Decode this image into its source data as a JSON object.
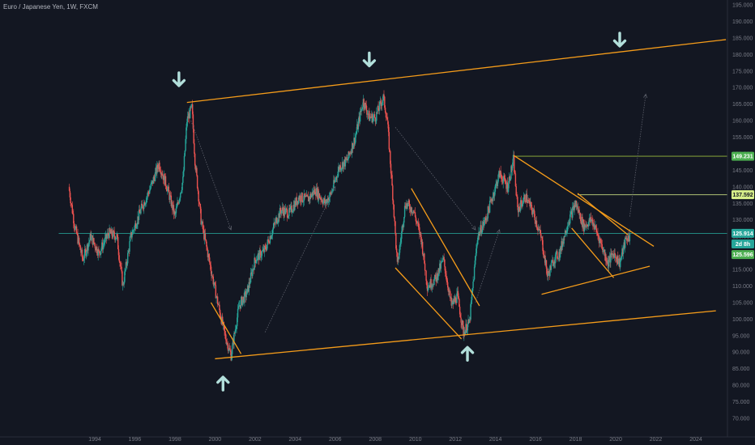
{
  "chart_data": {
    "type": "candlestick",
    "title": "Euro / Japanese Yen, 1W, FXCM",
    "x_ticks": [
      "1994",
      "1996",
      "1998",
      "2000",
      "2002",
      "2004",
      "2006",
      "2008",
      "2010",
      "2012",
      "2014",
      "2016",
      "2018",
      "2020",
      "2022",
      "2024"
    ],
    "y_ticks": [
      "195.000",
      "190.000",
      "185.000",
      "180.000",
      "175.000",
      "170.000",
      "165.000",
      "160.000",
      "155.000",
      "150.000",
      "145.000",
      "140.000",
      "135.000",
      "130.000",
      "125.000",
      "120.000",
      "115.000",
      "110.000",
      "105.000",
      "100.000",
      "95.000",
      "90.000",
      "85.000",
      "80.000",
      "75.000",
      "70.000"
    ],
    "ylim": [
      68,
      197
    ],
    "xlim": [
      1992.2,
      2026.5
    ],
    "price_path": [
      [
        1992.7,
        140
      ],
      [
        1993.0,
        128
      ],
      [
        1993.4,
        118
      ],
      [
        1993.8,
        125
      ],
      [
        1994.2,
        120
      ],
      [
        1994.7,
        126
      ],
      [
        1995.1,
        125
      ],
      [
        1995.4,
        110
      ],
      [
        1995.8,
        125
      ],
      [
        1996.3,
        133
      ],
      [
        1996.8,
        140
      ],
      [
        1997.2,
        147
      ],
      [
        1997.6,
        140
      ],
      [
        1998.0,
        131
      ],
      [
        1998.4,
        142
      ],
      [
        1998.6,
        160
      ],
      [
        1998.85,
        164
      ],
      [
        1999.0,
        148
      ],
      [
        1999.3,
        130
      ],
      [
        1999.7,
        118
      ],
      [
        2000.1,
        106
      ],
      [
        2000.5,
        95
      ],
      [
        2000.8,
        89
      ],
      [
        2001.2,
        104
      ],
      [
        2001.6,
        108
      ],
      [
        2002.0,
        118
      ],
      [
        2002.5,
        121
      ],
      [
        2003.0,
        129
      ],
      [
        2003.3,
        133
      ],
      [
        2003.7,
        132
      ],
      [
        2004.2,
        137
      ],
      [
        2004.6,
        136
      ],
      [
        2005.0,
        139
      ],
      [
        2005.5,
        135
      ],
      [
        2005.8,
        138
      ],
      [
        2006.2,
        146
      ],
      [
        2006.6,
        148
      ],
      [
        2007.0,
        155
      ],
      [
        2007.4,
        166
      ],
      [
        2007.7,
        161
      ],
      [
        2008.0,
        161
      ],
      [
        2008.4,
        167
      ],
      [
        2008.6,
        160
      ],
      [
        2008.9,
        135
      ],
      [
        2009.1,
        116
      ],
      [
        2009.5,
        135
      ],
      [
        2009.9,
        133
      ],
      [
        2010.3,
        124
      ],
      [
        2010.6,
        110
      ],
      [
        2011.0,
        112
      ],
      [
        2011.4,
        118
      ],
      [
        2011.8,
        104
      ],
      [
        2012.1,
        107
      ],
      [
        2012.4,
        96
      ],
      [
        2012.7,
        99
      ],
      [
        2013.1,
        125
      ],
      [
        2013.5,
        130
      ],
      [
        2013.9,
        138
      ],
      [
        2014.2,
        144
      ],
      [
        2014.6,
        140
      ],
      [
        2014.9,
        148
      ],
      [
        2015.1,
        133
      ],
      [
        2015.5,
        137
      ],
      [
        2015.9,
        132
      ],
      [
        2016.3,
        124
      ],
      [
        2016.6,
        113
      ],
      [
        2016.9,
        118
      ],
      [
        2017.2,
        120
      ],
      [
        2017.6,
        129
      ],
      [
        2018.0,
        135
      ],
      [
        2018.4,
        128
      ],
      [
        2018.8,
        130
      ],
      [
        2019.2,
        124
      ],
      [
        2019.6,
        117
      ],
      [
        2019.9,
        120
      ],
      [
        2020.2,
        117
      ],
      [
        2020.5,
        124
      ],
      [
        2020.7,
        125
      ]
    ],
    "trendlines": [
      {
        "from": [
          1998.6,
          165.5
        ],
        "to": [
          2025.5,
          184.5
        ],
        "color": "#f59c1a"
      },
      {
        "from": [
          2000.0,
          88
        ],
        "to": [
          2025.0,
          102.5
        ],
        "color": "#f59c1a"
      },
      {
        "from": [
          2016.3,
          107.5
        ],
        "to": [
          2021.7,
          116
        ],
        "color": "#f59c1a"
      },
      {
        "from": [
          1999.8,
          105
        ],
        "to": [
          2001.3,
          89.5
        ],
        "color": "#f59c1a"
      },
      {
        "from": [
          2009.0,
          115.5
        ],
        "to": [
          2012.3,
          94
        ],
        "color": "#f59c1a"
      },
      {
        "from": [
          2009.8,
          139.5
        ],
        "to": [
          2013.2,
          104
        ],
        "color": "#f59c1a"
      },
      {
        "from": [
          2014.9,
          149.5
        ],
        "to": [
          2021.9,
          122
        ],
        "color": "#f59c1a"
      },
      {
        "from": [
          2018.1,
          138
        ],
        "to": [
          2020.6,
          125.5
        ],
        "color": "#f59c1a"
      },
      {
        "from": [
          2017.8,
          127.5
        ],
        "to": [
          2019.9,
          112.5
        ],
        "color": "#f59c1a"
      }
    ],
    "horizontal_lines": [
      {
        "y": 149.231,
        "x_from": 2014.9,
        "color": "#a7cc3f"
      },
      {
        "y": 137.592,
        "x_from": 2018.1,
        "color": "#d9ef8b"
      },
      {
        "y": 125.914,
        "x_from": 1992.2,
        "color": "#26a69a"
      }
    ],
    "price_badges": [
      {
        "label": "149.231",
        "y": 149.231,
        "bg": "#4caf50",
        "fg": "#ffffff"
      },
      {
        "label": "137.592",
        "y": 137.592,
        "bg": "#d7ee8a",
        "fg": "#131722"
      },
      {
        "label": "125.914",
        "y": 125.914,
        "bg": "#26a69a",
        "fg": "#ffffff"
      },
      {
        "label": "2d 8h",
        "y": 122.7,
        "bg": "#26a69a",
        "fg": "#ffffff"
      },
      {
        "label": "125.596",
        "y": 119.5,
        "bg": "#4caf50",
        "fg": "#ffffff"
      }
    ],
    "arrows": [
      {
        "from": [
          1998.8,
          160
        ],
        "to": [
          2000.8,
          127
        ],
        "color": "#5d606b"
      },
      {
        "from": [
          2002.5,
          96
        ],
        "to": [
          2006.0,
          140
        ],
        "color": "#5d606b"
      },
      {
        "from": [
          2009.0,
          158
        ],
        "to": [
          2013.0,
          127
        ],
        "color": "#5d606b"
      },
      {
        "from": [
          2013.0,
          105
        ],
        "to": [
          2014.2,
          127
        ],
        "color": "#5d606b"
      },
      {
        "from": [
          2020.7,
          131
        ],
        "to": [
          2021.5,
          168
        ],
        "color": "#5d606b"
      }
    ],
    "markers": [
      {
        "direction": "down",
        "x": 1998.2,
        "y": 172.5
      },
      {
        "direction": "down",
        "x": 2007.7,
        "y": 178.5
      },
      {
        "direction": "down",
        "x": 2020.2,
        "y": 184.5
      },
      {
        "direction": "up",
        "x": 2000.4,
        "y": 80.5
      },
      {
        "direction": "up",
        "x": 2012.6,
        "y": 89.5
      }
    ],
    "grid": false,
    "legend": "none"
  }
}
